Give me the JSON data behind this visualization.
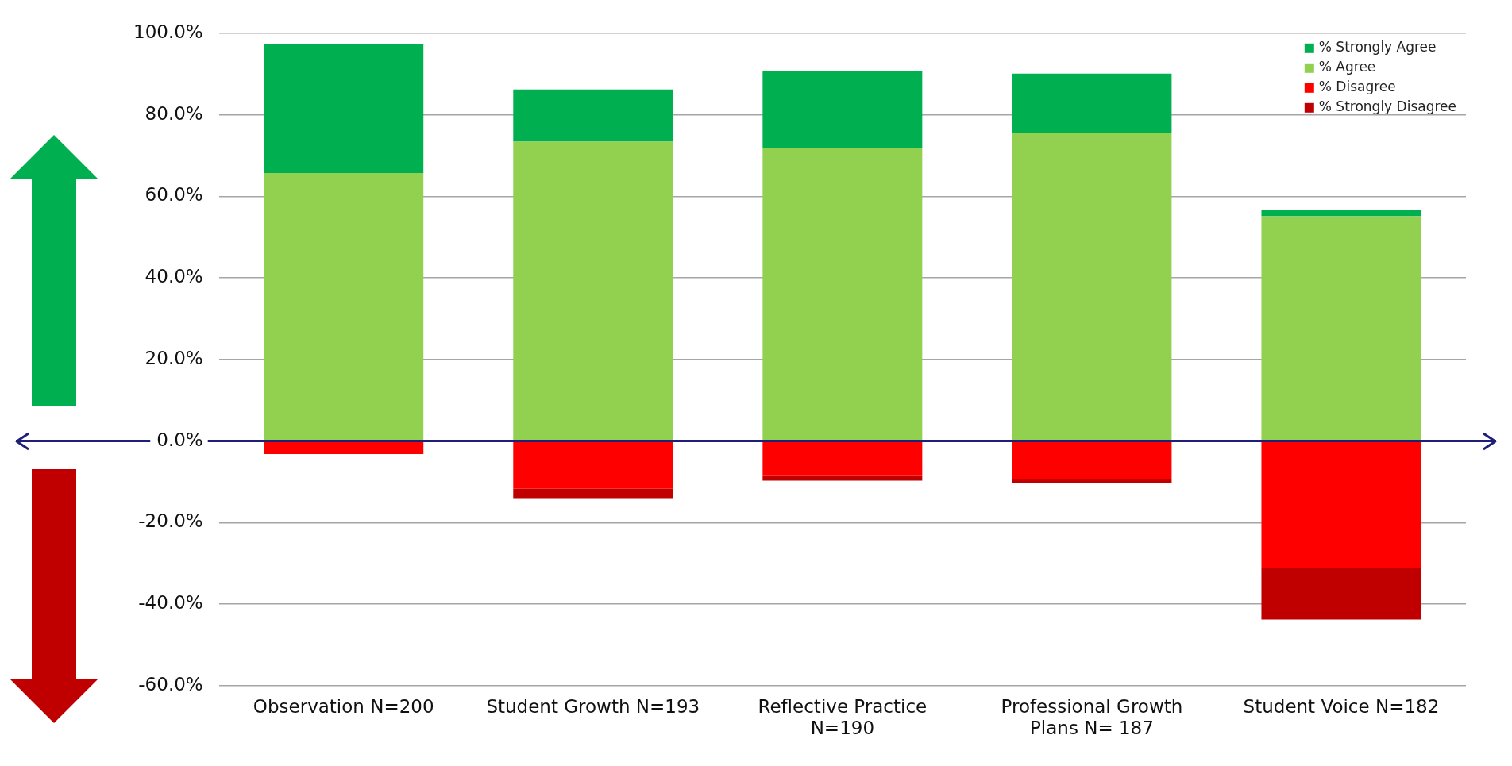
{
  "chart_data": {
    "type": "bar",
    "stacked": true,
    "categories": [
      "Observation N=200",
      "Student Growth N=193",
      "Reflective Practice N=190",
      "Professional Growth Plans N= 187",
      "Student Voice N=182"
    ],
    "series": [
      {
        "name": "% Agree",
        "color": "#92d050",
        "values": [
          65.7,
          73.4,
          71.8,
          75.6,
          55.1
        ]
      },
      {
        "name": "% Strongly Agree",
        "color": "#00b050",
        "values": [
          31.6,
          12.8,
          18.9,
          14.5,
          1.6
        ]
      },
      {
        "name": "% Disagree",
        "color": "#ff0000",
        "values": [
          -3.2,
          -11.7,
          -8.6,
          -9.3,
          -31.2
        ]
      },
      {
        "name": "% Strongly Disagree",
        "color": "#c00000",
        "values": [
          0,
          -2.5,
          -1.1,
          -1.1,
          -12.6
        ]
      }
    ],
    "ylim": [
      -60,
      100
    ],
    "yticks": [
      {
        "value": -60,
        "label": "-60.0%"
      },
      {
        "value": -40,
        "label": "-40.0%"
      },
      {
        "value": -20,
        "label": "-20.0%"
      },
      {
        "value": 0,
        "label": "0.0%"
      },
      {
        "value": 20,
        "label": "20.0%"
      },
      {
        "value": 40,
        "label": "40.0%"
      },
      {
        "value": 60,
        "label": "60.0%"
      },
      {
        "value": 80,
        "label": "80.0%"
      },
      {
        "value": 100,
        "label": "100.0%"
      }
    ],
    "grid": "y",
    "legend": "top right",
    "ref_lines": [
      {
        "axis": "y",
        "value": 0,
        "color": "#1f1f7a"
      }
    ]
  }
}
